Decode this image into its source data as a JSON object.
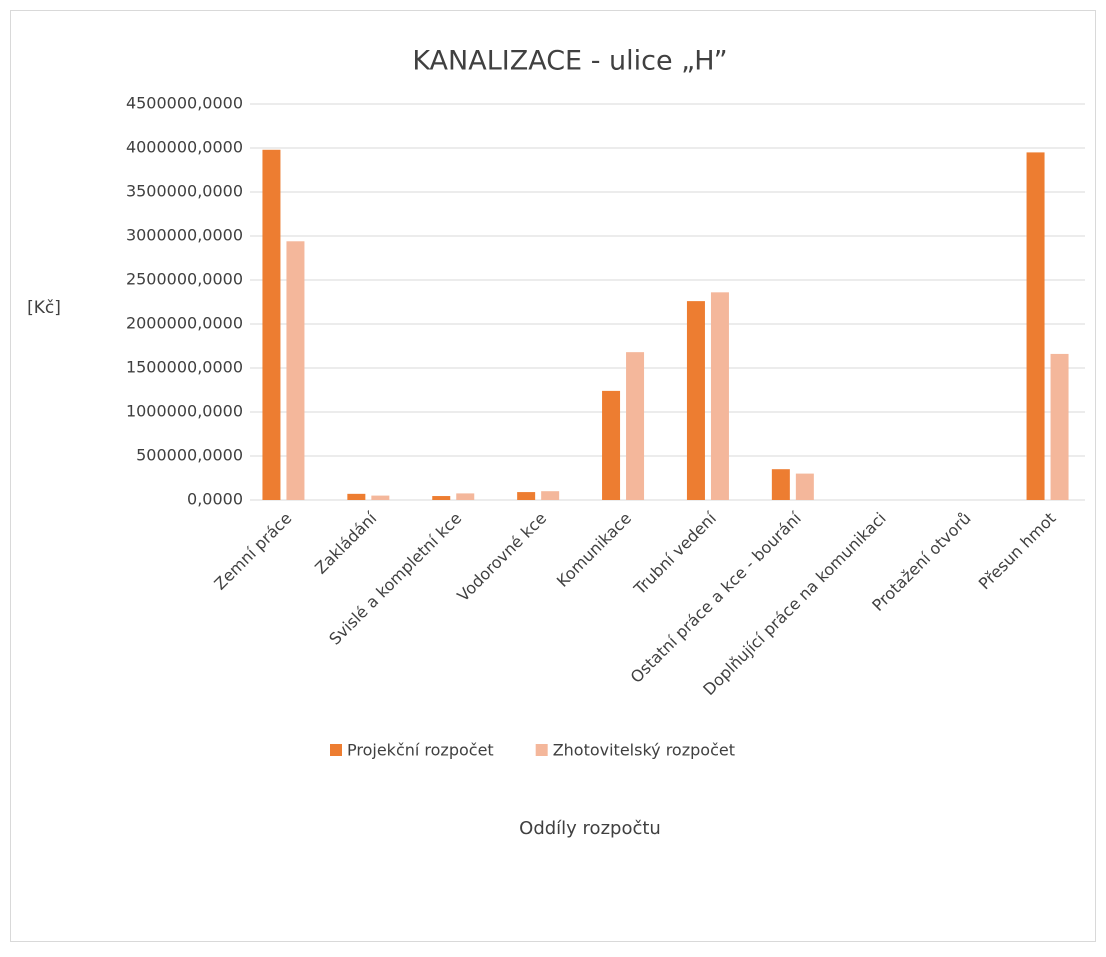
{
  "chart_data": {
    "type": "bar",
    "title": "KANALIZACE - ulice „H”",
    "y_axis_label": "[Kč]",
    "x_axis_label": "Oddíly rozpočtu",
    "categories": [
      "Zemní práce",
      "Zakládání",
      "Svislé a kompletní kce",
      "Vodorovné kce",
      "Komunikace",
      "Trubní vedení",
      "Ostatní práce a kce - bourání",
      "Doplňující práce na komunikaci",
      "Protažení otvorů",
      "Přesun hmot"
    ],
    "series": [
      {
        "name": "Projekční rozpočet",
        "color": "#ed7d31",
        "values": [
          3980000,
          70000,
          45000,
          90000,
          1240000,
          2260000,
          350000,
          0,
          0,
          3950000
        ]
      },
      {
        "name": "Zhotovitelský rozpočet",
        "color": "#f4b79b",
        "values": [
          2940000,
          50000,
          75000,
          100000,
          1680000,
          2360000,
          300000,
          0,
          0,
          1660000
        ]
      }
    ],
    "ylim": [
      0,
      4500000
    ],
    "yticks": [
      {
        "value": 0,
        "label": "0,0000"
      },
      {
        "value": 500000,
        "label": "500000,0000"
      },
      {
        "value": 1000000,
        "label": "1000000,0000"
      },
      {
        "value": 1500000,
        "label": "1500000,0000"
      },
      {
        "value": 2000000,
        "label": "2000000,0000"
      },
      {
        "value": 2500000,
        "label": "2500000,0000"
      },
      {
        "value": 3000000,
        "label": "3000000,0000"
      },
      {
        "value": 3500000,
        "label": "3500000,0000"
      },
      {
        "value": 4000000,
        "label": "4000000,0000"
      },
      {
        "value": 4500000,
        "label": "4500000,0000"
      }
    ],
    "grid": true,
    "legend": "bottom"
  }
}
